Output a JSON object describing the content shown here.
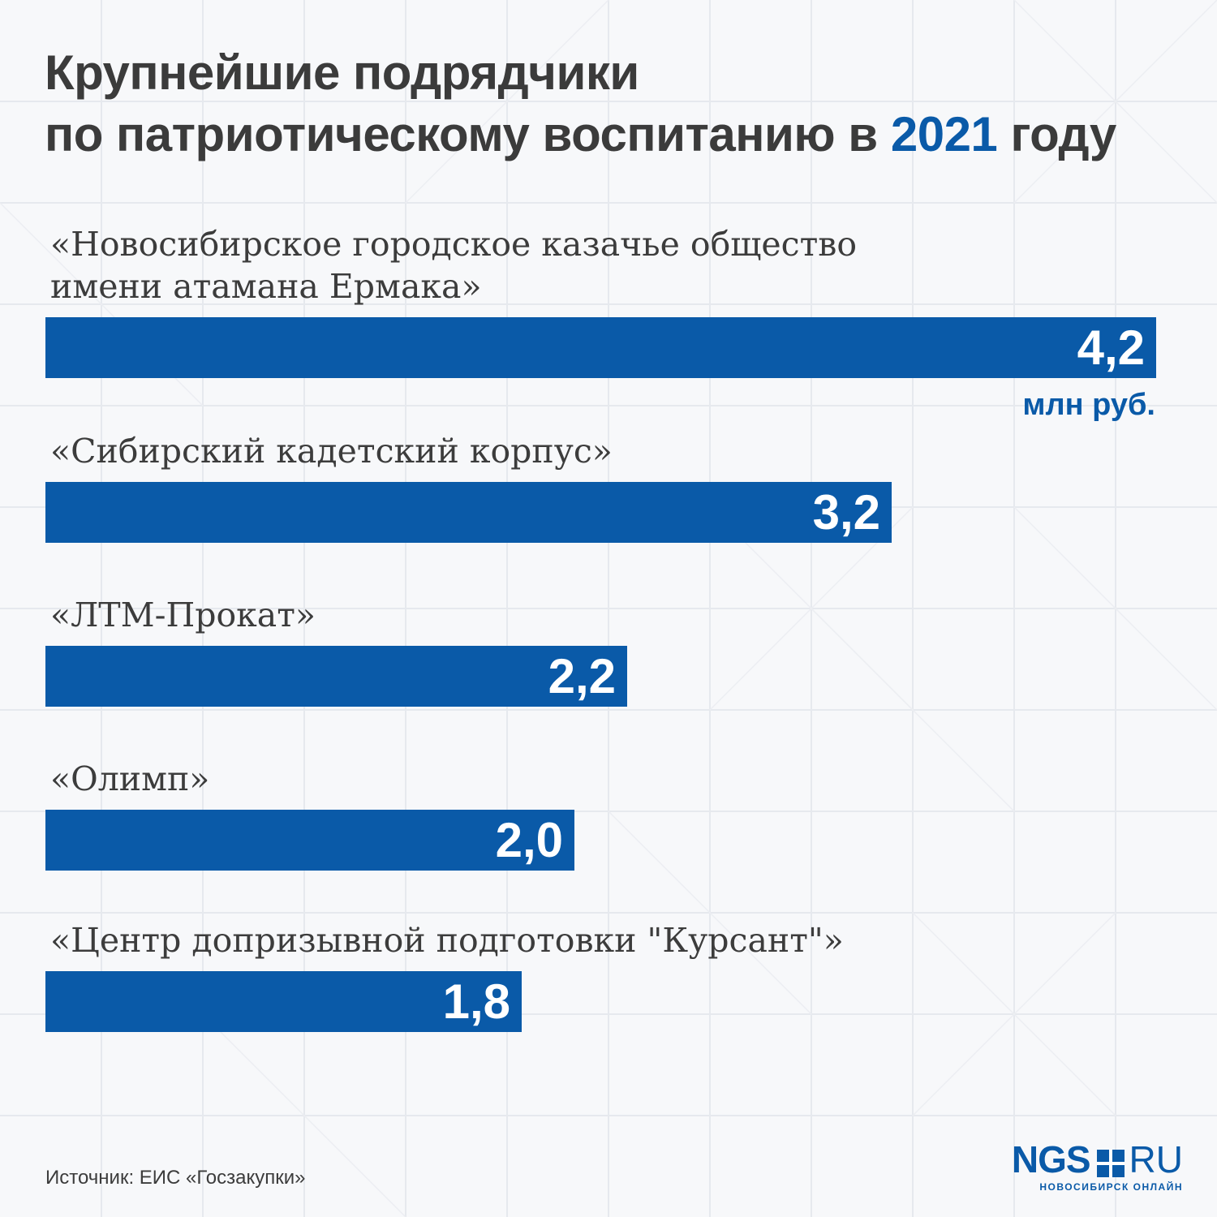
{
  "header": {
    "title_line1": "Крупнейшие подрядчики",
    "title_line2_prefix": "по патриотическому воспитанию в",
    "title_year": "2021",
    "title_line2_suffix": "году"
  },
  "chart_data": {
    "type": "bar",
    "orientation": "horizontal",
    "title": "Крупнейшие подрядчики по патриотическому воспитанию в 2021 году",
    "unit": "млн руб.",
    "categories": [
      [
        "«Новосибирское городское казачье общество",
        "имени атамана Ермака»"
      ],
      [
        "«Сибирский кадетский корпус»"
      ],
      [
        "«ЛТМ-Прокат»"
      ],
      [
        "«Олимп»"
      ],
      [
        "«Центр допризывной подготовки \"Курсант\"»"
      ]
    ],
    "values": [
      4.2,
      3.2,
      2.2,
      2.0,
      1.8
    ],
    "value_labels": [
      "4,2",
      "3,2",
      "2,2",
      "2,0",
      "1,8"
    ],
    "xlim": [
      0,
      4.2
    ],
    "bar_color": "#0a5aa8",
    "grid": false,
    "legend": "none"
  },
  "footer": {
    "source": "Источник: ЕИС «Госзакупки»"
  },
  "logo": {
    "ngs": "NGS",
    "ru": "RU",
    "tagline": "НОВОСИБИРСК ОНЛАЙН"
  },
  "colors": {
    "accent": "#0a5aa8",
    "text": "#3b3b3b",
    "background": "#f7f8fa"
  }
}
